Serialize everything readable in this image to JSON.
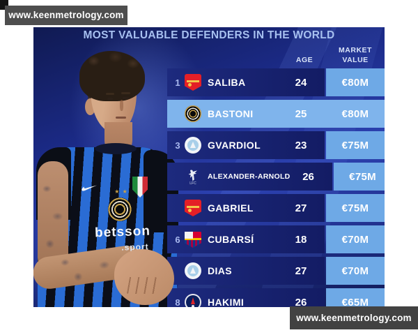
{
  "watermark_top": "www.keenmetrology.com",
  "watermark_bottom": "www.keenmetrology.com",
  "title": "MOST VALUABLE DEFENDERS IN THE WORLD",
  "table": {
    "headers": {
      "age": "AGE",
      "market_value_line1": "MARKET",
      "market_value_line2": "VALUE"
    },
    "rows": [
      {
        "rank": "1",
        "club": "arsenal",
        "player": "SALIBA",
        "age": "24",
        "value": "€80M",
        "highlighted": false
      },
      {
        "rank": "",
        "club": "inter",
        "player": "BASTONI",
        "age": "25",
        "value": "€80M",
        "highlighted": true
      },
      {
        "rank": "3",
        "club": "mancity",
        "player": "GVARDIOL",
        "age": "23",
        "value": "€75M",
        "highlighted": false
      },
      {
        "rank": "",
        "club": "liverpool",
        "player": "ALEXANDER-ARNOLD",
        "age": "26",
        "value": "€75M",
        "highlighted": false
      },
      {
        "rank": "",
        "club": "arsenal",
        "player": "GABRIEL",
        "age": "27",
        "value": "€75M",
        "highlighted": false
      },
      {
        "rank": "6",
        "club": "barcelona",
        "player": "CUBARSÍ",
        "age": "18",
        "value": "€70M",
        "highlighted": false
      },
      {
        "rank": "",
        "club": "mancity",
        "player": "DIAS",
        "age": "27",
        "value": "€70M",
        "highlighted": false
      },
      {
        "rank": "8",
        "club": "psg",
        "player": "HAKIMI",
        "age": "26",
        "value": "€65M",
        "highlighted": false
      }
    ]
  },
  "player_photo": {
    "jersey_sponsor": "betsson",
    "jersey_sponsor_sub": ".sport",
    "jersey_stars": "★ ★"
  },
  "colors": {
    "row_navy": "#1d2a7e",
    "highlight_blue": "#7fb4ec",
    "value_cell_blue": "#6ea9e6",
    "graphic_blue": "#2c41b0",
    "watermark_gray": "#4e4e4e",
    "title_text": "#a7c0f0"
  }
}
